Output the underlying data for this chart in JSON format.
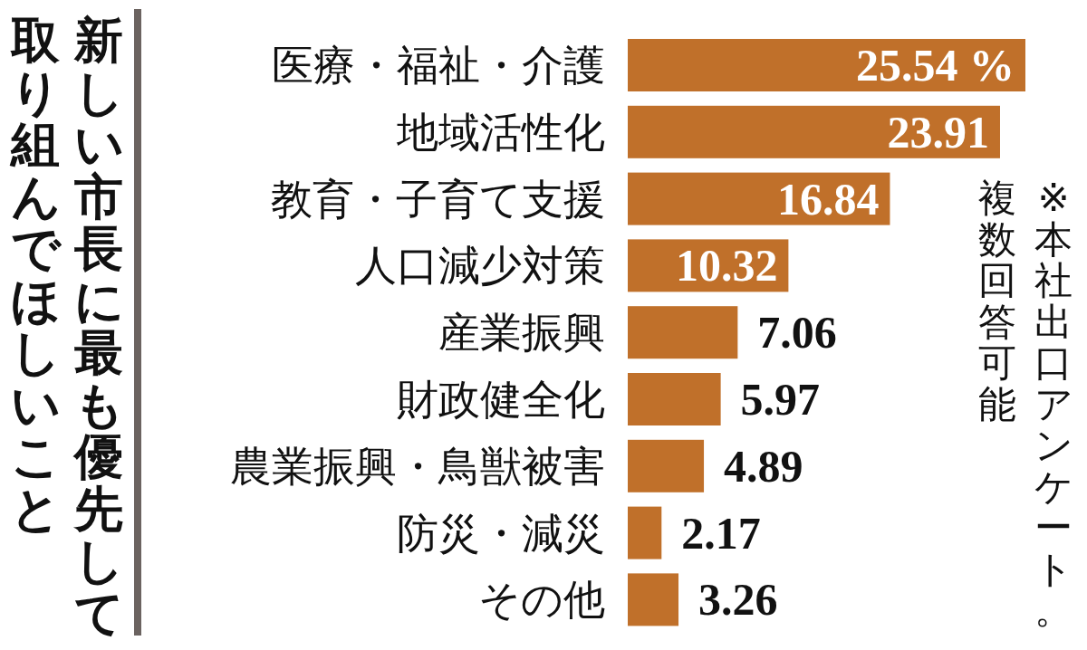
{
  "chart_data": {
    "type": "bar",
    "orientation": "horizontal",
    "title": "新しい市長に最も優先して取り組んでほしいこと",
    "categories": [
      "医療・福祉・介護",
      "地域活性化",
      "教育・子育て支援",
      "人口減少対策",
      "産業振興",
      "財政健全化",
      "農業振興・鳥獣被害",
      "防災・減災",
      "その他"
    ],
    "values": [
      25.54,
      23.91,
      16.84,
      10.32,
      7.06,
      5.97,
      4.89,
      2.17,
      3.26
    ],
    "value_labels": [
      "25.54 %",
      "23.91",
      "16.84",
      "10.32",
      "7.06",
      "5.97",
      "4.89",
      "2.17",
      "3.26"
    ],
    "color": "#c0702a",
    "annotations": [
      "※本社出口アンケート。複数回答可能"
    ]
  }
}
